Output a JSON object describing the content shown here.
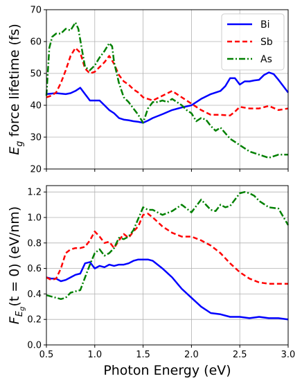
{
  "chart_data": [
    {
      "type": "line",
      "xlim": [
        0.5,
        3.0
      ],
      "ylim": [
        20,
        70
      ],
      "xticks": [
        0.5,
        1.0,
        1.5,
        2.0,
        2.5,
        3.0
      ],
      "yticks": [
        20,
        30,
        40,
        50,
        60,
        70
      ],
      "ytick_labels": [
        "20",
        "30",
        "40",
        "50",
        "60",
        "70"
      ],
      "show_xtick_labels": false,
      "grid": true,
      "legend_position": "top-right",
      "ylabel": "E_g force lifetime (fs)",
      "ylabel_parts": {
        "sym": "E",
        "sub": "g",
        "rest": " force lifetime (fs)"
      },
      "series": [
        {
          "name": "Bi",
          "color": "#0000ff",
          "style": "solid",
          "x": [
            0.5,
            0.6,
            0.7,
            0.75,
            0.8,
            0.85,
            0.9,
            0.95,
            1.0,
            1.05,
            1.1,
            1.15,
            1.2,
            1.25,
            1.3,
            1.35,
            1.4,
            1.45,
            1.5,
            1.55,
            1.6,
            1.7,
            1.8,
            1.9,
            2.0,
            2.1,
            2.2,
            2.3,
            2.35,
            2.4,
            2.45,
            2.5,
            2.55,
            2.6,
            2.65,
            2.7,
            2.75,
            2.8,
            2.85,
            2.9,
            2.95,
            3.0
          ],
          "y": [
            43.5,
            43.8,
            43.5,
            43.8,
            44.5,
            45.5,
            43.5,
            41.5,
            41.5,
            41.5,
            40.0,
            38.5,
            37.5,
            36.0,
            35.5,
            35.3,
            35.0,
            34.8,
            34.5,
            35.2,
            36.0,
            37.2,
            38.5,
            39.3,
            40.0,
            42.0,
            43.5,
            44.5,
            46.0,
            48.5,
            48.5,
            46.5,
            47.5,
            47.5,
            47.8,
            48.0,
            49.5,
            50.3,
            49.8,
            48.0,
            46.0,
            44.0
          ]
        },
        {
          "name": "Sb",
          "color": "#ff0000",
          "style": "dashed",
          "x": [
            0.5,
            0.55,
            0.6,
            0.65,
            0.7,
            0.75,
            0.8,
            0.85,
            0.9,
            0.95,
            1.0,
            1.05,
            1.1,
            1.15,
            1.2,
            1.25,
            1.3,
            1.35,
            1.4,
            1.45,
            1.5,
            1.55,
            1.6,
            1.7,
            1.8,
            1.9,
            2.0,
            2.1,
            2.2,
            2.3,
            2.4,
            2.45,
            2.5,
            2.6,
            2.7,
            2.8,
            2.9,
            3.0
          ],
          "y": [
            42.5,
            43.0,
            44.0,
            47.0,
            51.0,
            55.5,
            58.0,
            56.5,
            51.5,
            50.0,
            50.5,
            52.0,
            53.5,
            55.5,
            53.0,
            49.5,
            47.5,
            46.5,
            45.0,
            44.0,
            42.5,
            42.0,
            41.5,
            43.0,
            44.5,
            42.5,
            40.5,
            38.5,
            37.0,
            37.0,
            36.8,
            38.0,
            39.5,
            39.0,
            39.0,
            39.8,
            38.5,
            39.0
          ]
        },
        {
          "name": "As",
          "color": "#008000",
          "style": "dashdot",
          "x": [
            0.5,
            0.53,
            0.56,
            0.6,
            0.65,
            0.7,
            0.75,
            0.8,
            0.83,
            0.87,
            0.9,
            0.95,
            1.0,
            1.05,
            1.1,
            1.15,
            1.18,
            1.2,
            1.25,
            1.3,
            1.35,
            1.4,
            1.45,
            1.5,
            1.55,
            1.6,
            1.65,
            1.7,
            1.75,
            1.8,
            1.85,
            1.9,
            1.95,
            2.0,
            2.05,
            2.1,
            2.15,
            2.2,
            2.25,
            2.3,
            2.4,
            2.5,
            2.6,
            2.7,
            2.8,
            2.9,
            3.0
          ],
          "y": [
            43.0,
            58.0,
            61.5,
            62.5,
            62.5,
            64.0,
            63.5,
            66.0,
            64.0,
            57.0,
            52.0,
            51.0,
            52.5,
            55.0,
            57.0,
            59.5,
            58.5,
            53.5,
            47.0,
            42.5,
            41.0,
            39.0,
            37.0,
            34.5,
            39.0,
            41.0,
            41.0,
            41.5,
            41.0,
            42.0,
            41.0,
            40.0,
            38.5,
            37.5,
            35.0,
            36.0,
            35.5,
            33.5,
            32.0,
            33.0,
            29.5,
            27.5,
            25.5,
            24.5,
            23.5,
            24.5,
            24.5
          ]
        }
      ]
    },
    {
      "type": "line",
      "xlim": [
        0.5,
        3.0
      ],
      "ylim": [
        0.0,
        1.25
      ],
      "xticks": [
        0.5,
        1.0,
        1.5,
        2.0,
        2.5,
        3.0
      ],
      "xtick_labels": [
        "0.5",
        "1.0",
        "1.5",
        "2.0",
        "2.5",
        "3.0"
      ],
      "yticks": [
        0.0,
        0.2,
        0.4,
        0.6,
        0.8,
        1.0,
        1.2
      ],
      "ytick_labels": [
        "0.0",
        "0.2",
        "0.4",
        "0.6",
        "0.8",
        "1.0",
        "1.2"
      ],
      "grid": true,
      "xlabel": "Photon Energy (eV)",
      "ylabel": "F_Eg(t = 0) (eV/nm)",
      "ylabel_parts": {
        "sym": "F",
        "sub": "E",
        "subsub": "g",
        "rest": "(t = 0) (eV/nm)"
      },
      "series": [
        {
          "name": "Bi",
          "color": "#0000ff",
          "style": "solid",
          "x": [
            0.5,
            0.55,
            0.6,
            0.65,
            0.7,
            0.75,
            0.8,
            0.85,
            0.9,
            0.95,
            1.0,
            1.05,
            1.1,
            1.15,
            1.2,
            1.25,
            1.3,
            1.35,
            1.4,
            1.45,
            1.5,
            1.55,
            1.6,
            1.7,
            1.8,
            1.9,
            2.0,
            2.1,
            2.2,
            2.3,
            2.4,
            2.5,
            2.6,
            2.7,
            2.8,
            2.9,
            3.0
          ],
          "y": [
            0.53,
            0.52,
            0.52,
            0.5,
            0.51,
            0.53,
            0.55,
            0.56,
            0.64,
            0.65,
            0.6,
            0.62,
            0.61,
            0.63,
            0.62,
            0.63,
            0.63,
            0.64,
            0.66,
            0.67,
            0.67,
            0.67,
            0.66,
            0.6,
            0.53,
            0.44,
            0.37,
            0.3,
            0.25,
            0.24,
            0.22,
            0.22,
            0.21,
            0.22,
            0.21,
            0.21,
            0.2
          ]
        },
        {
          "name": "Sb",
          "color": "#ff0000",
          "style": "dashed",
          "x": [
            0.5,
            0.55,
            0.6,
            0.65,
            0.7,
            0.75,
            0.8,
            0.85,
            0.9,
            0.95,
            1.0,
            1.05,
            1.1,
            1.15,
            1.2,
            1.25,
            1.3,
            1.35,
            1.4,
            1.45,
            1.5,
            1.55,
            1.6,
            1.7,
            1.8,
            1.9,
            2.0,
            2.1,
            2.2,
            2.3,
            2.4,
            2.5,
            2.6,
            2.7,
            2.8,
            2.9,
            3.0
          ],
          "y": [
            0.53,
            0.51,
            0.52,
            0.6,
            0.72,
            0.75,
            0.76,
            0.76,
            0.77,
            0.82,
            0.89,
            0.85,
            0.8,
            0.81,
            0.76,
            0.82,
            0.87,
            0.84,
            0.89,
            0.93,
            1.02,
            1.03,
            1.0,
            0.93,
            0.88,
            0.85,
            0.85,
            0.82,
            0.78,
            0.72,
            0.64,
            0.57,
            0.52,
            0.49,
            0.48,
            0.48,
            0.48
          ]
        },
        {
          "name": "As",
          "color": "#008000",
          "style": "dashdot",
          "x": [
            0.5,
            0.55,
            0.6,
            0.65,
            0.7,
            0.75,
            0.8,
            0.85,
            0.9,
            0.95,
            1.0,
            1.05,
            1.1,
            1.15,
            1.2,
            1.25,
            1.3,
            1.35,
            1.4,
            1.45,
            1.5,
            1.55,
            1.6,
            1.7,
            1.8,
            1.9,
            2.0,
            2.05,
            2.1,
            2.15,
            2.2,
            2.25,
            2.3,
            2.35,
            2.4,
            2.45,
            2.5,
            2.55,
            2.6,
            2.65,
            2.7,
            2.8,
            2.9,
            3.0
          ],
          "y": [
            0.39,
            0.38,
            0.37,
            0.36,
            0.37,
            0.41,
            0.42,
            0.43,
            0.53,
            0.63,
            0.72,
            0.75,
            0.7,
            0.72,
            0.76,
            0.84,
            0.83,
            0.85,
            0.9,
            0.99,
            1.08,
            1.06,
            1.06,
            1.02,
            1.05,
            1.1,
            1.04,
            1.09,
            1.14,
            1.1,
            1.06,
            1.05,
            1.1,
            1.08,
            1.09,
            1.14,
            1.19,
            1.2,
            1.19,
            1.17,
            1.13,
            1.08,
            1.07,
            0.94
          ]
        }
      ]
    }
  ]
}
